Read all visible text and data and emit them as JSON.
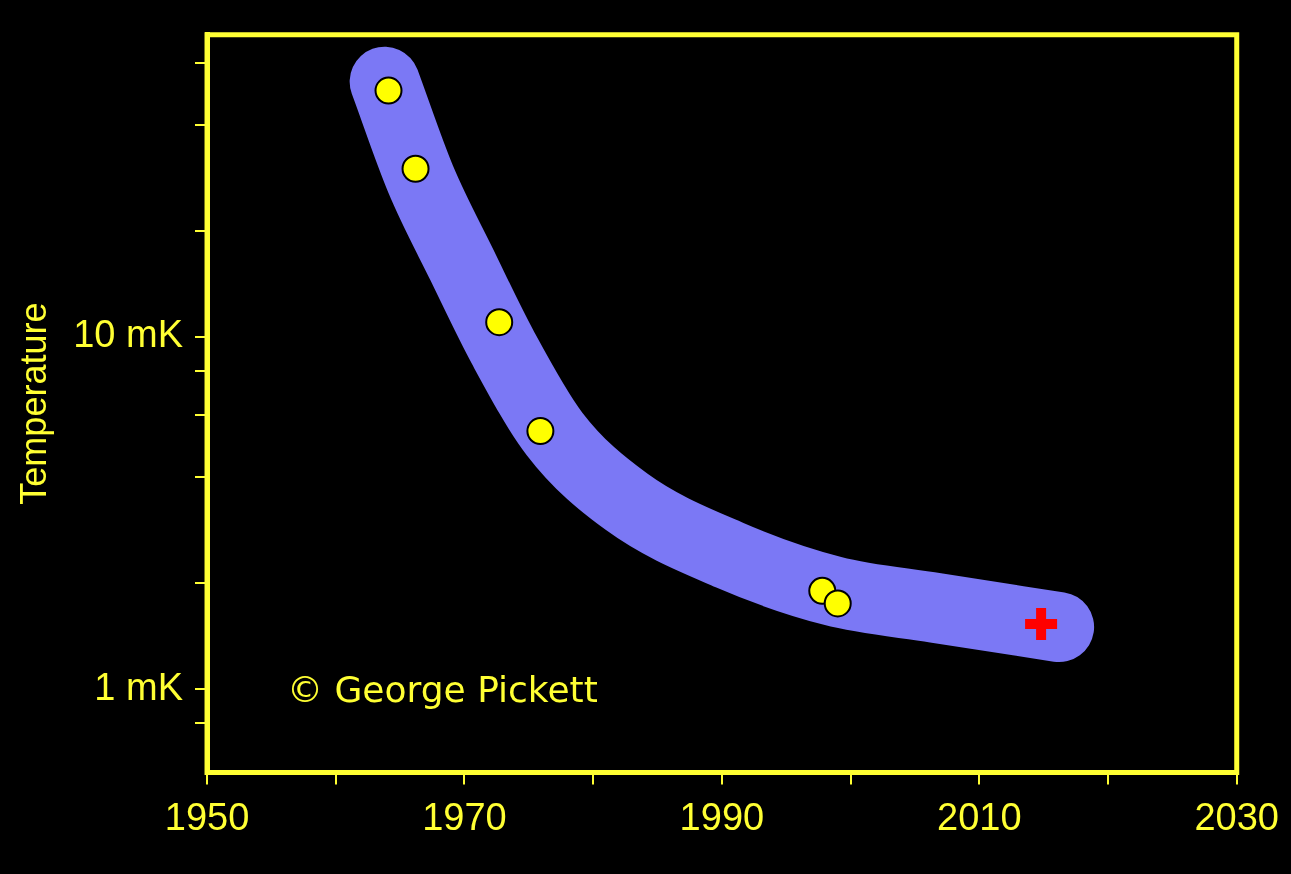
{
  "chart_data": {
    "type": "scatter",
    "ylabel": "Temperature",
    "xlim": [
      1950,
      2030
    ],
    "ylim": [
      0.58,
      72
    ],
    "log": "y",
    "grid": false,
    "legend": false,
    "xticks": [
      1950,
      {
        "value": 1960,
        "label": null
      },
      1970,
      {
        "value": 1980,
        "label": null
      },
      1990,
      {
        "value": 2000,
        "label": null
      },
      2010,
      {
        "value": 2020,
        "label": null
      },
      2030
    ],
    "yticks": [
      {
        "value": 0.8,
        "label": null
      },
      {
        "value": 1,
        "label": "1 mK"
      },
      {
        "value": 2,
        "label": null
      },
      {
        "value": 4,
        "label": null
      },
      {
        "value": 6,
        "label": null
      },
      {
        "value": 8,
        "label": null
      },
      {
        "value": 10,
        "label": "10 mK"
      },
      {
        "value": 20,
        "label": null
      },
      {
        "value": 40,
        "label": null
      },
      {
        "value": 60,
        "label": null
      }
    ],
    "series": [
      {
        "type": "line",
        "color": "#7b78f5",
        "marker": "none",
        "x": [
          1963.8,
          1966.6,
          1969.8,
          1973,
          1977,
          1982.6,
          1990.6,
          1998.6,
          2006.6,
          2016.2
        ],
        "values": [
          53,
          28,
          16,
          9.3,
          5.3,
          3.4,
          2.4,
          1.9,
          1.7,
          1.5
        ]
      },
      {
        "color": "#ffff00",
        "marker": "circle",
        "x": [
          1964.1,
          1966.2,
          1972.7,
          1975.9,
          1997.8,
          1999
        ],
        "values": [
          50,
          30,
          11,
          5.4,
          1.9,
          1.75
        ]
      },
      {
        "color": "#ff0000",
        "marker": "cross",
        "x": [
          2014.8
        ],
        "values": [
          1.53
        ]
      }
    ],
    "annotations": [
      "© George Pickett"
    ]
  }
}
